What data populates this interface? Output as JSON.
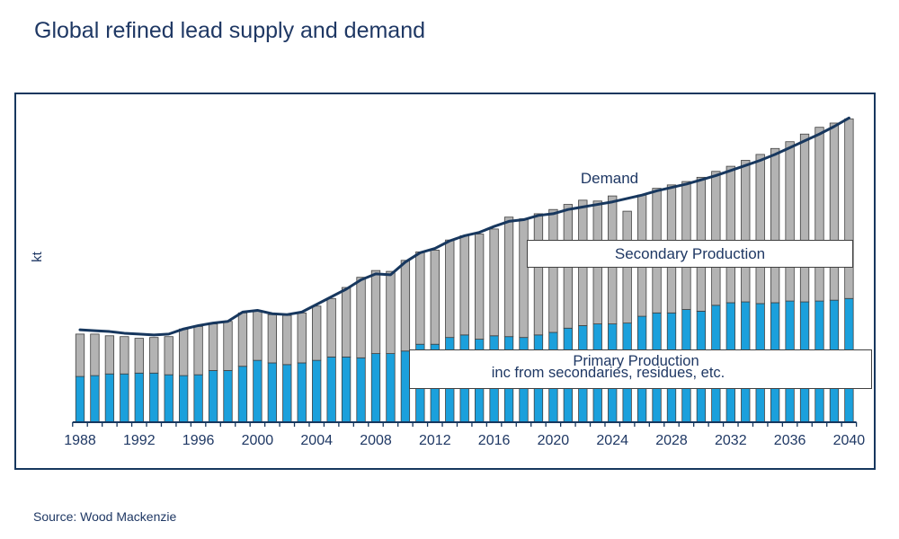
{
  "header": {
    "title": "Global refined lead supply and demand"
  },
  "footer": {
    "source": "Source: Wood Mackenzie"
  },
  "labels": {
    "demand": "Demand",
    "secondary": "Secondary Production",
    "primary_line1": "Primary Production",
    "primary_line2": "inc from secondaries, residues, etc."
  },
  "colors": {
    "navy_text": "#1F3864",
    "frame_border": "#17375E",
    "demand_line": "#17375E",
    "primary_bar": "#1BA0DC",
    "secondary_bar": "#B3B3B3",
    "bar_outline": "#404040",
    "label_box_bg": "#FFFFFF",
    "label_box_border": "#404040"
  },
  "chart_data": {
    "type": "bar+line",
    "title": "Global refined lead supply and demand",
    "ylabel": "kt",
    "unit": "kt",
    "grid": false,
    "legend_position": "inline-annotations",
    "ylim": [
      0,
      19345
    ],
    "x_tick_label_interval": 4,
    "x_tick_labels": [
      "1988",
      "1992",
      "1996",
      "2000",
      "2004",
      "2008",
      "2012",
      "2016",
      "2020",
      "2024",
      "2028",
      "2032",
      "2036",
      "2040"
    ],
    "x": [
      1988,
      1989,
      1990,
      1991,
      1992,
      1993,
      1994,
      1995,
      1996,
      1997,
      1998,
      1999,
      2000,
      2001,
      2002,
      2003,
      2004,
      2005,
      2006,
      2007,
      2008,
      2009,
      2010,
      2011,
      2012,
      2013,
      2014,
      2015,
      2016,
      2017,
      2018,
      2019,
      2020,
      2021,
      2022,
      2023,
      2024,
      2025,
      2026,
      2027,
      2028,
      2029,
      2030,
      2031,
      2032,
      2033,
      2034,
      2035,
      2036,
      2037,
      2038,
      2039,
      2040
    ],
    "series": [
      {
        "name": "Primary Production (inc from secondaries, residues, etc.)",
        "type": "bar",
        "stack": "supply",
        "color": "#1BA0DC",
        "values": [
          2700,
          2750,
          2850,
          2850,
          2900,
          2900,
          2800,
          2750,
          2800,
          3050,
          3050,
          3300,
          3650,
          3500,
          3400,
          3500,
          3650,
          3850,
          3850,
          3800,
          4050,
          4050,
          4200,
          4600,
          4600,
          5000,
          5150,
          4900,
          5100,
          5050,
          5000,
          5150,
          5300,
          5550,
          5700,
          5800,
          5800,
          5850,
          6250,
          6450,
          6450,
          6650,
          6550,
          6900,
          7050,
          7100,
          7000,
          7050,
          7150,
          7100,
          7150,
          7200,
          7300
        ]
      },
      {
        "name": "Secondary Production",
        "type": "bar",
        "stack": "supply",
        "color": "#B3B3B3",
        "values": [
          2500,
          2450,
          2250,
          2200,
          2050,
          2100,
          2250,
          2750,
          2850,
          2750,
          2900,
          3150,
          2950,
          2850,
          2900,
          2950,
          3200,
          3450,
          4100,
          4750,
          4900,
          4850,
          5350,
          5450,
          5550,
          5750,
          5850,
          6200,
          6300,
          7050,
          7000,
          7150,
          7250,
          7300,
          7400,
          7250,
          7550,
          6600,
          7150,
          7350,
          7550,
          7550,
          7900,
          7900,
          8050,
          8350,
          8800,
          9100,
          9400,
          9900,
          10250,
          10450,
          10600
        ]
      },
      {
        "name": "Demand",
        "type": "line",
        "color": "#17375E",
        "values": [
          5450,
          5400,
          5350,
          5250,
          5200,
          5150,
          5200,
          5500,
          5700,
          5850,
          5950,
          6500,
          6600,
          6400,
          6350,
          6500,
          6950,
          7400,
          7850,
          8400,
          8750,
          8700,
          9450,
          10000,
          10250,
          10700,
          11000,
          11200,
          11550,
          11850,
          11950,
          12200,
          12300,
          12550,
          12700,
          12850,
          13000,
          13200,
          13400,
          13650,
          13850,
          14050,
          14300,
          14550,
          14850,
          15150,
          15450,
          15800,
          16200,
          16600,
          17000,
          17450,
          17950
        ]
      }
    ]
  }
}
